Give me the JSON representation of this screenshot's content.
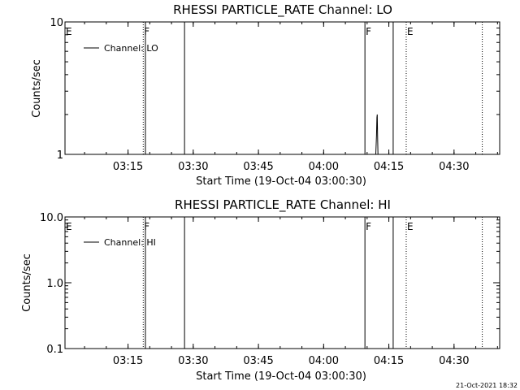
{
  "footer_stamp": "21-Oct-2021 18:32",
  "chart_data": [
    {
      "type": "line",
      "title": "RHESSI PARTICLE_RATE Channel: LO",
      "xlabel": "Start Time (19-Oct-04 03:00:30)",
      "ylabel": "Counts/sec",
      "y_scale": "log",
      "ylim": [
        1,
        10
      ],
      "xlim": [
        "03:00:30",
        "04:40:30"
      ],
      "x_ticks": [
        "03:15",
        "03:30",
        "03:45",
        "04:00",
        "04:15",
        "04:30"
      ],
      "y_ticks": [
        "1",
        "10"
      ],
      "legend": {
        "position": "top-left",
        "entries": [
          "Channel: LO"
        ]
      },
      "markers": [
        {
          "label": "E",
          "time": "03:00:30",
          "style": "dotted"
        },
        {
          "label": "F",
          "time": "03:18:30",
          "style": "dotted"
        },
        {
          "label": "",
          "time": "03:19:00",
          "style": "solid"
        },
        {
          "label": "",
          "time": "03:28:00",
          "style": "solid"
        },
        {
          "label": "F",
          "time": "04:09:30",
          "style": "solid"
        },
        {
          "label": "",
          "time": "04:16:00",
          "style": "solid"
        },
        {
          "label": "E",
          "time": "04:19:00",
          "style": "dotted"
        },
        {
          "label": "",
          "time": "04:36:30",
          "style": "dotted"
        }
      ],
      "series": [
        {
          "name": "Channel: LO",
          "x": [
            "04:12:00",
            "04:12:05",
            "04:12:10",
            "04:12:15",
            "04:12:20",
            "04:12:25",
            "04:12:30"
          ],
          "y": [
            1.0,
            1.2,
            1.4,
            1.9,
            2.0,
            1.3,
            1.0
          ]
        }
      ]
    },
    {
      "type": "line",
      "title": "RHESSI PARTICLE_RATE Channel: HI",
      "xlabel": "Start Time (19-Oct-04 03:00:30)",
      "ylabel": "Counts/sec",
      "y_scale": "log",
      "ylim": [
        0.1,
        10
      ],
      "xlim": [
        "03:00:30",
        "04:40:30"
      ],
      "x_ticks": [
        "03:15",
        "03:30",
        "03:45",
        "04:00",
        "04:15",
        "04:30"
      ],
      "y_ticks": [
        "0.1",
        "1.0",
        "10.0"
      ],
      "legend": {
        "position": "top-left",
        "entries": [
          "Channel: HI"
        ]
      },
      "markers": [
        {
          "label": "E",
          "time": "03:00:30",
          "style": "dotted"
        },
        {
          "label": "F",
          "time": "03:18:30",
          "style": "dotted"
        },
        {
          "label": "",
          "time": "03:19:00",
          "style": "solid"
        },
        {
          "label": "",
          "time": "03:28:00",
          "style": "solid"
        },
        {
          "label": "F",
          "time": "04:09:30",
          "style": "solid"
        },
        {
          "label": "",
          "time": "04:16:00",
          "style": "solid"
        },
        {
          "label": "E",
          "time": "04:19:00",
          "style": "dotted"
        },
        {
          "label": "",
          "time": "04:36:30",
          "style": "dotted"
        }
      ],
      "series": [
        {
          "name": "Channel: HI",
          "x": [],
          "y": []
        }
      ]
    }
  ]
}
